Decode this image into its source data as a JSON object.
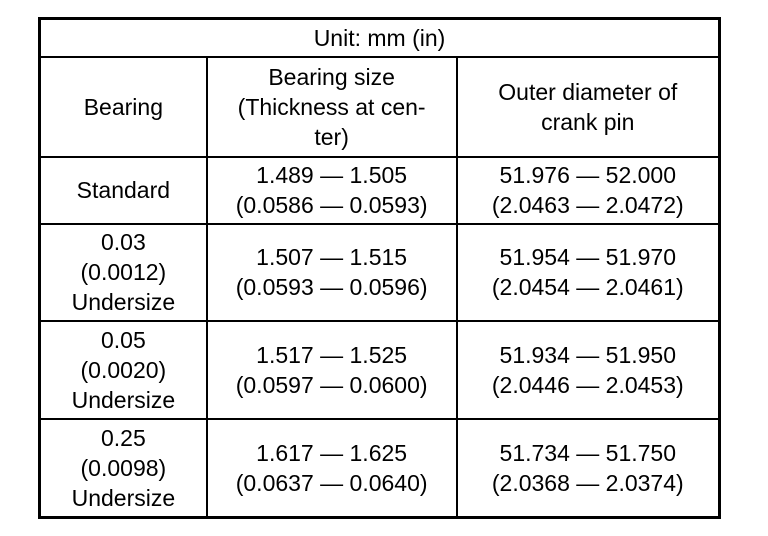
{
  "table": {
    "unit_label": "Unit: mm (in)",
    "headers": {
      "bearing": "Bearing",
      "bearing_size": "Bearing size\n(Thickness at cen-\nter)",
      "outer_diameter": "Outer diameter of\ncrank pin"
    },
    "rows": [
      {
        "bearing": "Standard",
        "bearing_size": "1.489 — 1.505\n(0.0586 — 0.0593)",
        "outer_diameter": "51.976 — 52.000\n(2.0463 — 2.0472)"
      },
      {
        "bearing": "0.03\n(0.0012)\nUndersize",
        "bearing_size": "1.507 — 1.515\n(0.0593 — 0.0596)",
        "outer_diameter": "51.954 — 51.970\n(2.0454 — 2.0461)"
      },
      {
        "bearing": "0.05\n(0.0020)\nUndersize",
        "bearing_size": "1.517 — 1.525\n(0.0597 — 0.0600)",
        "outer_diameter": "51.934 — 51.950\n(2.0446 — 2.0453)"
      },
      {
        "bearing": "0.25\n(0.0098)\nUndersize",
        "bearing_size": "1.617 — 1.625\n(0.0637 — 0.0640)",
        "outer_diameter": "51.734 — 51.750\n(2.0368 — 2.0374)"
      }
    ],
    "colors": {
      "border": "#000000",
      "text": "#000000",
      "background": "#ffffff"
    }
  }
}
